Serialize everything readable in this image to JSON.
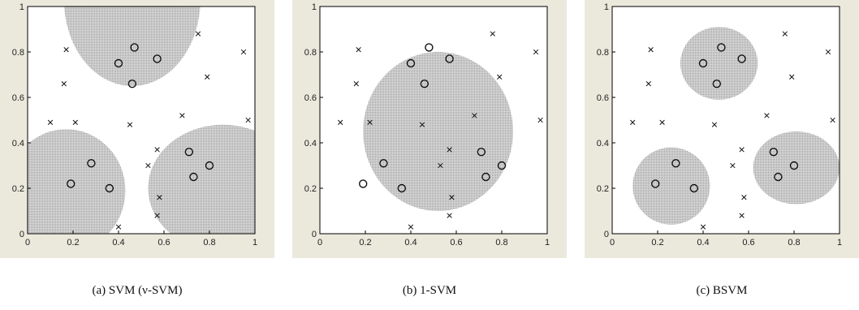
{
  "figure_colors": {
    "frame_bg": "#ebe9dc",
    "plot_bg": "#ffffff",
    "region_fill": "#9a9a9a",
    "marker": "#111111"
  },
  "chart_data": [
    {
      "type": "scatter",
      "caption": "(a) SVM (ν-SVM)",
      "xlim": [
        0,
        1
      ],
      "ylim": [
        0,
        1
      ],
      "xticks": [
        "0",
        "0.2",
        "0.4",
        "0.6",
        "0.8",
        "1"
      ],
      "yticks": [
        "0",
        "0.2",
        "0.4",
        "0.6",
        "0.8",
        "1"
      ],
      "grid": false,
      "series": [
        {
          "marker": "o",
          "points": [
            [
              0.47,
              0.82
            ],
            [
              0.4,
              0.75
            ],
            [
              0.57,
              0.77
            ],
            [
              0.46,
              0.66
            ],
            [
              0.28,
              0.31
            ],
            [
              0.19,
              0.22
            ],
            [
              0.36,
              0.2
            ],
            [
              0.71,
              0.36
            ],
            [
              0.73,
              0.25
            ],
            [
              0.8,
              0.3
            ]
          ]
        },
        {
          "marker": "x",
          "points": [
            [
              0.17,
              0.81
            ],
            [
              0.16,
              0.66
            ],
            [
              0.1,
              0.49
            ],
            [
              0.21,
              0.49
            ],
            [
              0.45,
              0.48
            ],
            [
              0.75,
              0.88
            ],
            [
              0.79,
              0.69
            ],
            [
              0.95,
              0.8
            ],
            [
              0.97,
              0.5
            ],
            [
              0.68,
              0.52
            ],
            [
              0.57,
              0.37
            ],
            [
              0.53,
              0.3
            ],
            [
              0.58,
              0.16
            ],
            [
              0.57,
              0.08
            ],
            [
              0.4,
              0.03
            ]
          ]
        }
      ],
      "regions": [
        {
          "shape": "ellipse",
          "cx": 0.46,
          "cy": 1.03,
          "rx": 0.3,
          "ry": 0.38
        },
        {
          "shape": "ellipse",
          "cx": 0.17,
          "cy": 0.19,
          "rx": 0.26,
          "ry": 0.27
        },
        {
          "shape": "ellipse",
          "cx": 0.86,
          "cy": 0.2,
          "rx": 0.33,
          "ry": 0.28
        }
      ]
    },
    {
      "type": "scatter",
      "caption": "(b) 1-SVM",
      "xlim": [
        0,
        1
      ],
      "ylim": [
        0,
        1
      ],
      "xticks": [
        "0",
        "0.2",
        "0.4",
        "0.6",
        "0.8",
        "1"
      ],
      "yticks": [
        "0",
        "0.2",
        "0.4",
        "0.6",
        "0.8",
        "1"
      ],
      "grid": false,
      "series": [
        {
          "marker": "o",
          "points": [
            [
              0.48,
              0.82
            ],
            [
              0.4,
              0.75
            ],
            [
              0.57,
              0.77
            ],
            [
              0.46,
              0.66
            ],
            [
              0.28,
              0.31
            ],
            [
              0.19,
              0.22
            ],
            [
              0.36,
              0.2
            ],
            [
              0.71,
              0.36
            ],
            [
              0.73,
              0.25
            ],
            [
              0.8,
              0.3
            ]
          ]
        },
        {
          "marker": "x",
          "points": [
            [
              0.17,
              0.81
            ],
            [
              0.16,
              0.66
            ],
            [
              0.09,
              0.49
            ],
            [
              0.22,
              0.49
            ],
            [
              0.45,
              0.48
            ],
            [
              0.76,
              0.88
            ],
            [
              0.79,
              0.69
            ],
            [
              0.95,
              0.8
            ],
            [
              0.97,
              0.5
            ],
            [
              0.68,
              0.52
            ],
            [
              0.57,
              0.37
            ],
            [
              0.53,
              0.3
            ],
            [
              0.58,
              0.16
            ],
            [
              0.57,
              0.08
            ],
            [
              0.4,
              0.03
            ]
          ]
        }
      ],
      "regions": [
        {
          "shape": "ellipse",
          "cx": 0.52,
          "cy": 0.45,
          "rx": 0.33,
          "ry": 0.35
        }
      ]
    },
    {
      "type": "scatter",
      "caption": "(c) BSVM",
      "xlim": [
        0,
        1
      ],
      "ylim": [
        0,
        1
      ],
      "xticks": [
        "0",
        "0.2",
        "0.4",
        "0.6",
        "0.8",
        "1"
      ],
      "yticks": [
        "0",
        "0.2",
        "0.4",
        "0.6",
        "0.8",
        "1"
      ],
      "grid": false,
      "series": [
        {
          "marker": "o",
          "points": [
            [
              0.48,
              0.82
            ],
            [
              0.4,
              0.75
            ],
            [
              0.57,
              0.77
            ],
            [
              0.46,
              0.66
            ],
            [
              0.28,
              0.31
            ],
            [
              0.19,
              0.22
            ],
            [
              0.36,
              0.2
            ],
            [
              0.71,
              0.36
            ],
            [
              0.73,
              0.25
            ],
            [
              0.8,
              0.3
            ]
          ]
        },
        {
          "marker": "x",
          "points": [
            [
              0.17,
              0.81
            ],
            [
              0.16,
              0.66
            ],
            [
              0.09,
              0.49
            ],
            [
              0.22,
              0.49
            ],
            [
              0.45,
              0.48
            ],
            [
              0.76,
              0.88
            ],
            [
              0.79,
              0.69
            ],
            [
              0.95,
              0.8
            ],
            [
              0.97,
              0.5
            ],
            [
              0.68,
              0.52
            ],
            [
              0.57,
              0.37
            ],
            [
              0.53,
              0.3
            ],
            [
              0.58,
              0.16
            ],
            [
              0.57,
              0.08
            ],
            [
              0.4,
              0.03
            ]
          ]
        }
      ],
      "regions": [
        {
          "shape": "ellipse",
          "cx": 0.47,
          "cy": 0.75,
          "rx": 0.17,
          "ry": 0.16
        },
        {
          "shape": "ellipse",
          "cx": 0.26,
          "cy": 0.21,
          "rx": 0.17,
          "ry": 0.17
        },
        {
          "shape": "ellipse",
          "cx": 0.81,
          "cy": 0.29,
          "rx": 0.19,
          "ry": 0.16
        }
      ]
    }
  ]
}
